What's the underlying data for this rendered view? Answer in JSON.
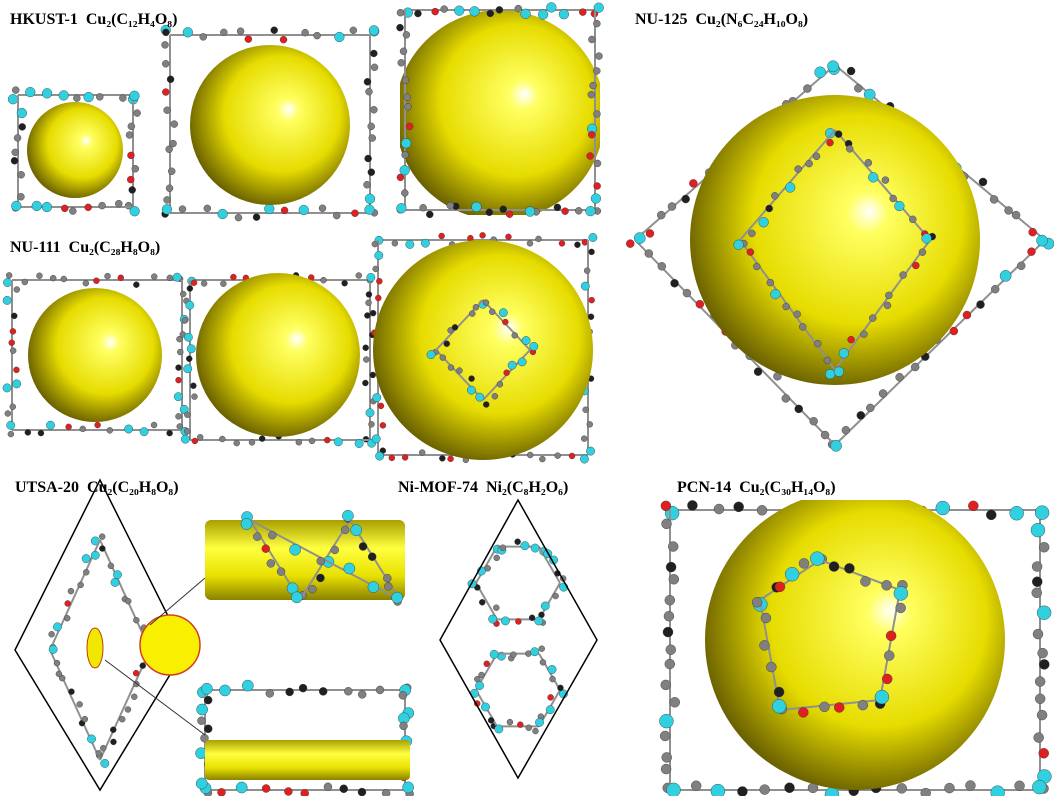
{
  "panels": [
    {
      "name": "HKUST-1",
      "formula": "Cu₂(C₁₂H₄O₈)"
    },
    {
      "name": "NU-125",
      "formula": "Cu₂(N₆C₂₄H₁₀O₈)"
    },
    {
      "name": "NU-111",
      "formula": "Cu₂(C₂₈H₈O₈)"
    },
    {
      "name": "UTSA-20",
      "formula": "Cu₂(C₂₀H₈O₈)"
    },
    {
      "name": "Ni-MOF-74",
      "formula": "Ni₂(C₈H₂O₆)"
    },
    {
      "name": "PCN-14",
      "formula": "Cu₂(C₃₀H₁₄O₈)"
    }
  ]
}
